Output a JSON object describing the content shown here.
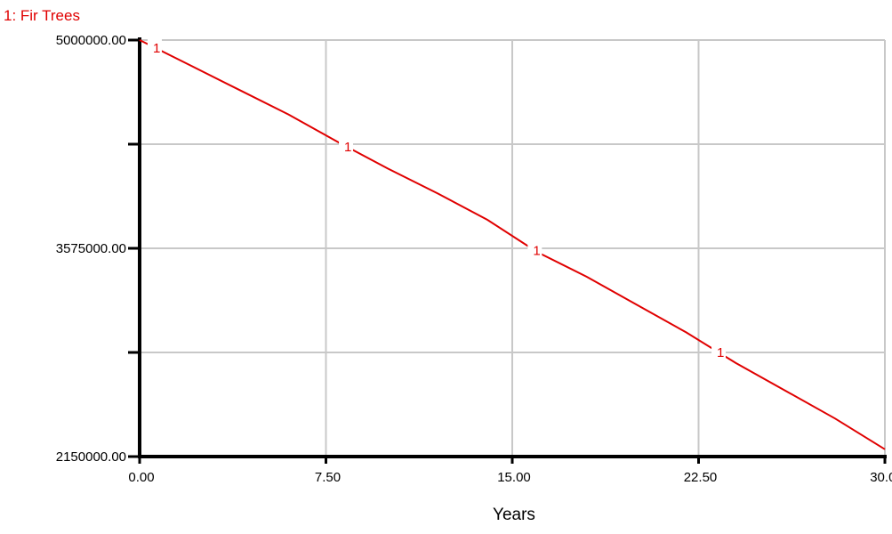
{
  "chart_data": {
    "type": "line",
    "xlabel": "Years",
    "ylabel": "",
    "xlim": [
      0,
      30
    ],
    "ylim": [
      2150000,
      5000000
    ],
    "x_ticks": [
      0,
      7.5,
      15,
      22.5,
      30
    ],
    "x_tick_labels": [
      "0.00",
      "7.50",
      "15.00",
      "22.50",
      "30.00"
    ],
    "y_ticks": [
      2150000,
      3575000,
      5000000
    ],
    "y_tick_labels": [
      "2150000.00",
      "3575000.00",
      "5000000.00"
    ],
    "y_minor_ticks": [
      2862500,
      4287500
    ],
    "grid": true,
    "series": [
      {
        "name": "1: Fir Trees",
        "marker_label": "1",
        "color": "#e00000",
        "marker_x": [
          0.5,
          8.2,
          15.8,
          23.2
        ],
        "x": [
          0,
          2,
          4,
          6,
          8,
          10,
          12,
          14,
          16,
          18,
          20,
          22,
          24,
          26,
          28,
          30
        ],
        "y": [
          5000000,
          4830000,
          4660000,
          4490000,
          4300000,
          4120000,
          3950000,
          3770000,
          3550000,
          3380000,
          3190000,
          3000000,
          2790000,
          2600000,
          2410000,
          2200000
        ]
      }
    ]
  }
}
